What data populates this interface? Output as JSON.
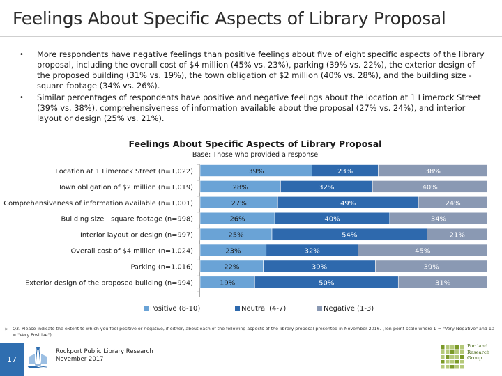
{
  "slide": {
    "title": "Feelings About Specific Aspects of Library Proposal",
    "bullets": [
      "More respondents have negative feelings than positive feelings about five of eight specific aspects of the library proposal, including the overall cost of $4 million (45% vs. 23%), parking (39% vs. 22%), the exterior design of the proposed building (31% vs. 19%), the town obligation of $2 million (40% vs. 28%), and the building size - square footage (34% vs. 26%).",
      "Similar percentages of respondents have positive and negative feelings about the location at 1 Limerock Street (39% vs. 38%), comprehensiveness of information available about the proposal (27% vs. 24%), and interior layout or design (25% vs. 21%)."
    ],
    "bullet_symbol": "•"
  },
  "chart_data": {
    "type": "bar",
    "orientation": "horizontal",
    "stacked": true,
    "title": "Feelings About Specific Aspects of Library Proposal",
    "subtitle": "Base: Those who provided a response",
    "categories": [
      "Location at 1 Limerock Street (n=1,022)",
      "Town obligation of $2 million (n=1,019)",
      "Comprehensiveness of information available (n=1,001)",
      "Building size - square footage (n=998)",
      "Interior layout or design (n=997)",
      "Overall cost of $4 million (n=1,024)",
      "Parking (n=1,016)",
      "Exterior design of the proposed building (n=994)"
    ],
    "series": [
      {
        "name": "Positive (8-10)",
        "color": "#6aa3d6",
        "values": [
          39,
          28,
          27,
          26,
          25,
          23,
          22,
          19
        ]
      },
      {
        "name": "Neutral (4-7)",
        "color": "#2e69ad",
        "values": [
          23,
          32,
          49,
          40,
          54,
          32,
          39,
          50
        ]
      },
      {
        "name": "Negative (1-3)",
        "color": "#8a99b3",
        "values": [
          38,
          40,
          24,
          34,
          21,
          45,
          39,
          31
        ]
      }
    ],
    "value_suffix": "%",
    "xlim": [
      0,
      100
    ],
    "legend_position": "bottom",
    "grid": false
  },
  "footer": {
    "arrow": "➢",
    "question_note": "Q3. Please indicate the extent to which you feel positive or negative, if either, about each of the following aspects of the library proposal presented in November 2016. (Ten-point scale where 1 = \"Very Negative\" and 10 = \"Very Positive\")",
    "page_number": "17",
    "org_line1": "Rockport Public Library Research",
    "org_line2": "November 2017",
    "firm_name": "Portland Research Group",
    "logo_accent": "#7c9a2a",
    "page_badge_color": "#2f6eb0"
  }
}
